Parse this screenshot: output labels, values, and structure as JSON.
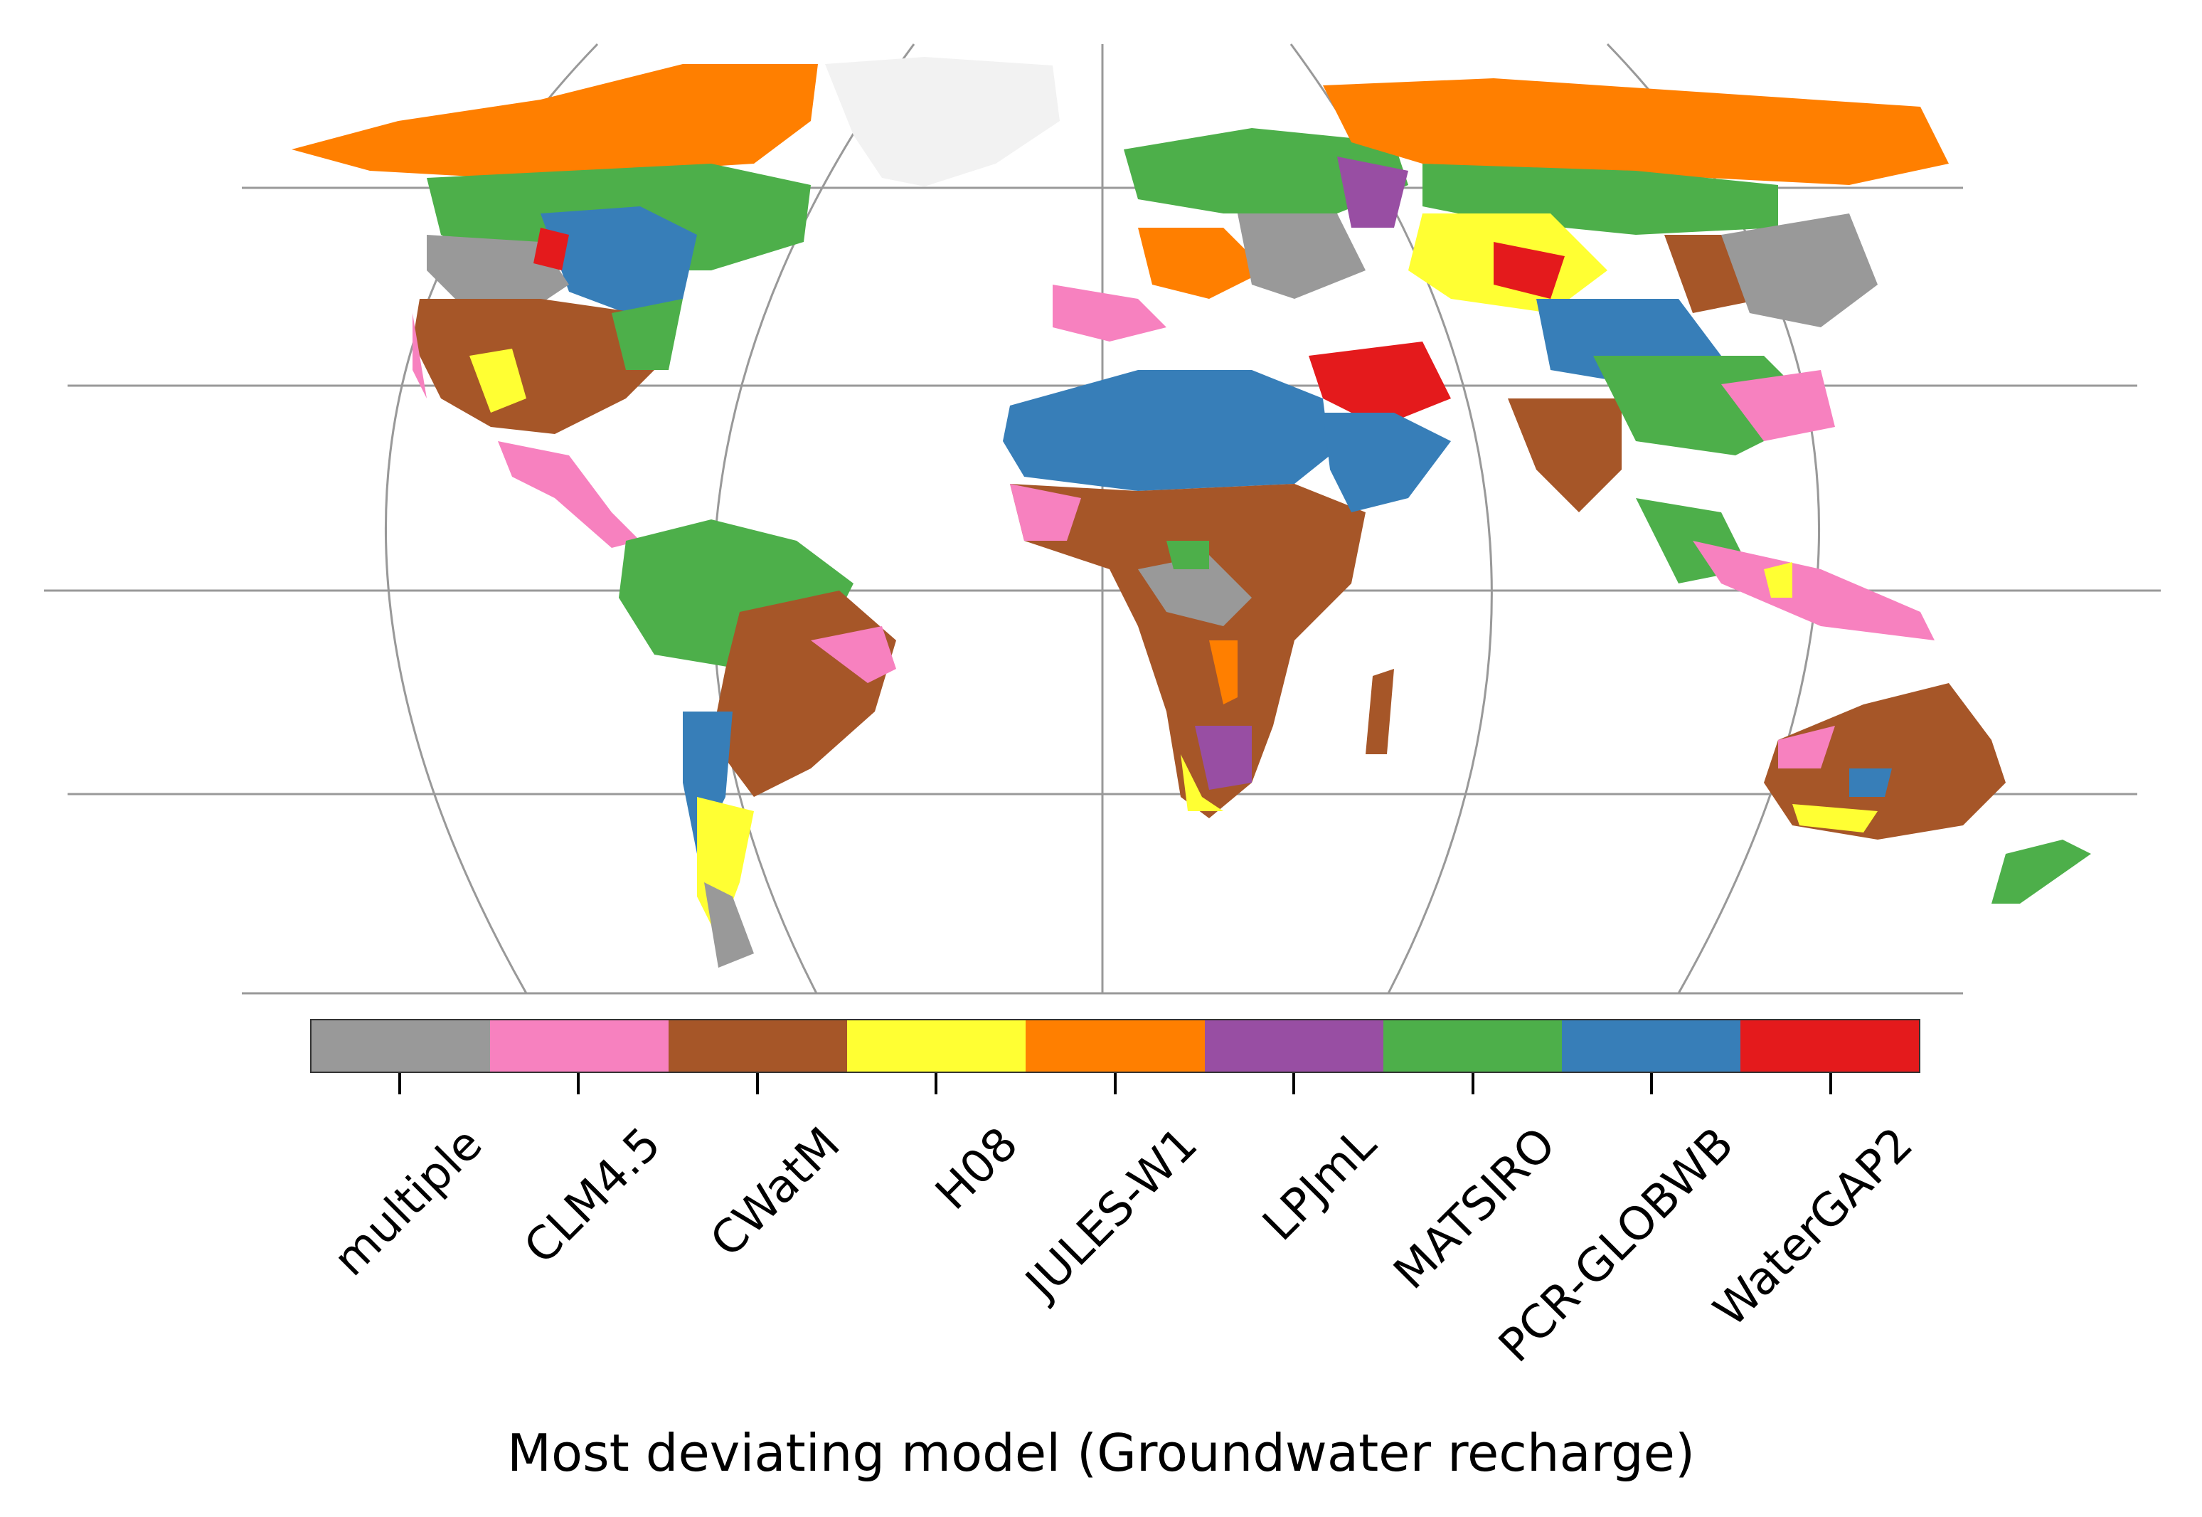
{
  "legend": {
    "title": "Most deviating model (Groundwater recharge)",
    "categories": [
      {
        "label": "multiple",
        "color": "#999999"
      },
      {
        "label": "CLM4.5",
        "color": "#f781bf"
      },
      {
        "label": "CWatM",
        "color": "#a65628"
      },
      {
        "label": "H08",
        "color": "#ffff33"
      },
      {
        "label": "JULES-W1",
        "color": "#ff7f00"
      },
      {
        "label": "LPJmL",
        "color": "#984ea3"
      },
      {
        "label": "MATSIRO",
        "color": "#4daf4a"
      },
      {
        "label": "PCR-GLOBWB",
        "color": "#377eb8"
      },
      {
        "label": "WaterGAP2",
        "color": "#e41a1c"
      }
    ]
  },
  "map": {
    "projection": "Robinson",
    "graticule_color": "#999999",
    "nodata_color": "#f2f2f2",
    "dominant_regions": [
      {
        "region": "North America (north)",
        "model": "JULES-W1"
      },
      {
        "region": "Canada (central)",
        "model": "MATSIRO"
      },
      {
        "region": "Hudson Bay area",
        "model": "PCR-GLOBWB"
      },
      {
        "region": "USA (south-west)",
        "model": "CWatM"
      },
      {
        "region": "Amazon basin",
        "model": "MATSIRO"
      },
      {
        "region": "Brazil (east)",
        "model": "CWatM"
      },
      {
        "region": "Argentina",
        "model": "H08"
      },
      {
        "region": "Sahara",
        "model": "PCR-GLOBWB"
      },
      {
        "region": "Sub-Saharan Africa",
        "model": "CWatM"
      },
      {
        "region": "Southern Africa",
        "model": "LPJmL"
      },
      {
        "region": "Siberia",
        "model": "JULES-W1"
      },
      {
        "region": "Central Asia",
        "model": "H08"
      },
      {
        "region": "Arabian Peninsula",
        "model": "PCR-GLOBWB"
      },
      {
        "region": "India",
        "model": "CWatM"
      },
      {
        "region": "Australia",
        "model": "CWatM"
      },
      {
        "region": "Greenland",
        "model": "multiple"
      }
    ]
  }
}
